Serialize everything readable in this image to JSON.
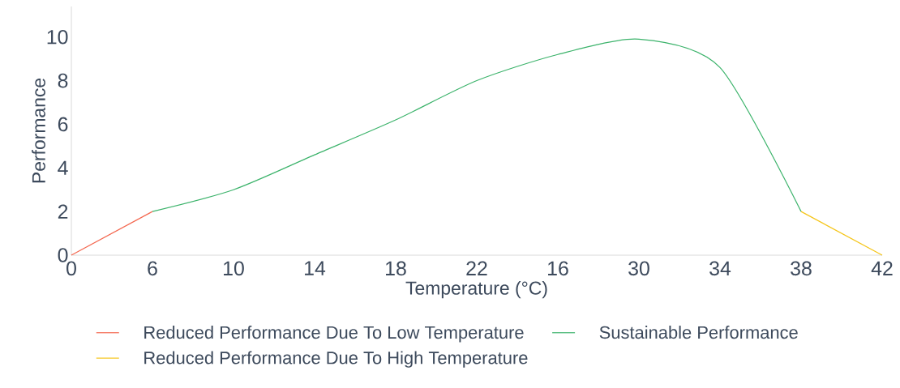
{
  "chart_data": {
    "type": "line",
    "xlabel": "Temperature (°C)",
    "ylabel": "Performance",
    "categories": [
      "0",
      "6",
      "10",
      "14",
      "18",
      "22",
      "16",
      "30",
      "34",
      "38",
      "42"
    ],
    "series": [
      {
        "name": "Reduced Performance Due To Low Temperature",
        "color": "#f4674f",
        "values": [
          0,
          2,
          null,
          null,
          null,
          null,
          null,
          null,
          null,
          null,
          null
        ]
      },
      {
        "name": "Sustainable Performance",
        "color": "#3cb36b",
        "values": [
          null,
          2,
          3.0,
          4.6,
          6.2,
          8.0,
          9.2,
          9.9,
          8.6,
          2,
          null
        ]
      },
      {
        "name": "Reduced Performance Due To High Temperature",
        "color": "#f5c518",
        "values": [
          null,
          null,
          null,
          null,
          null,
          null,
          null,
          null,
          null,
          2,
          0
        ]
      }
    ],
    "ylim": [
      0,
      11.4
    ],
    "yticks": [
      0,
      2,
      4,
      6,
      8,
      10
    ],
    "grid": false,
    "legend": "bottom",
    "marker": "none",
    "line_style": "solid"
  }
}
